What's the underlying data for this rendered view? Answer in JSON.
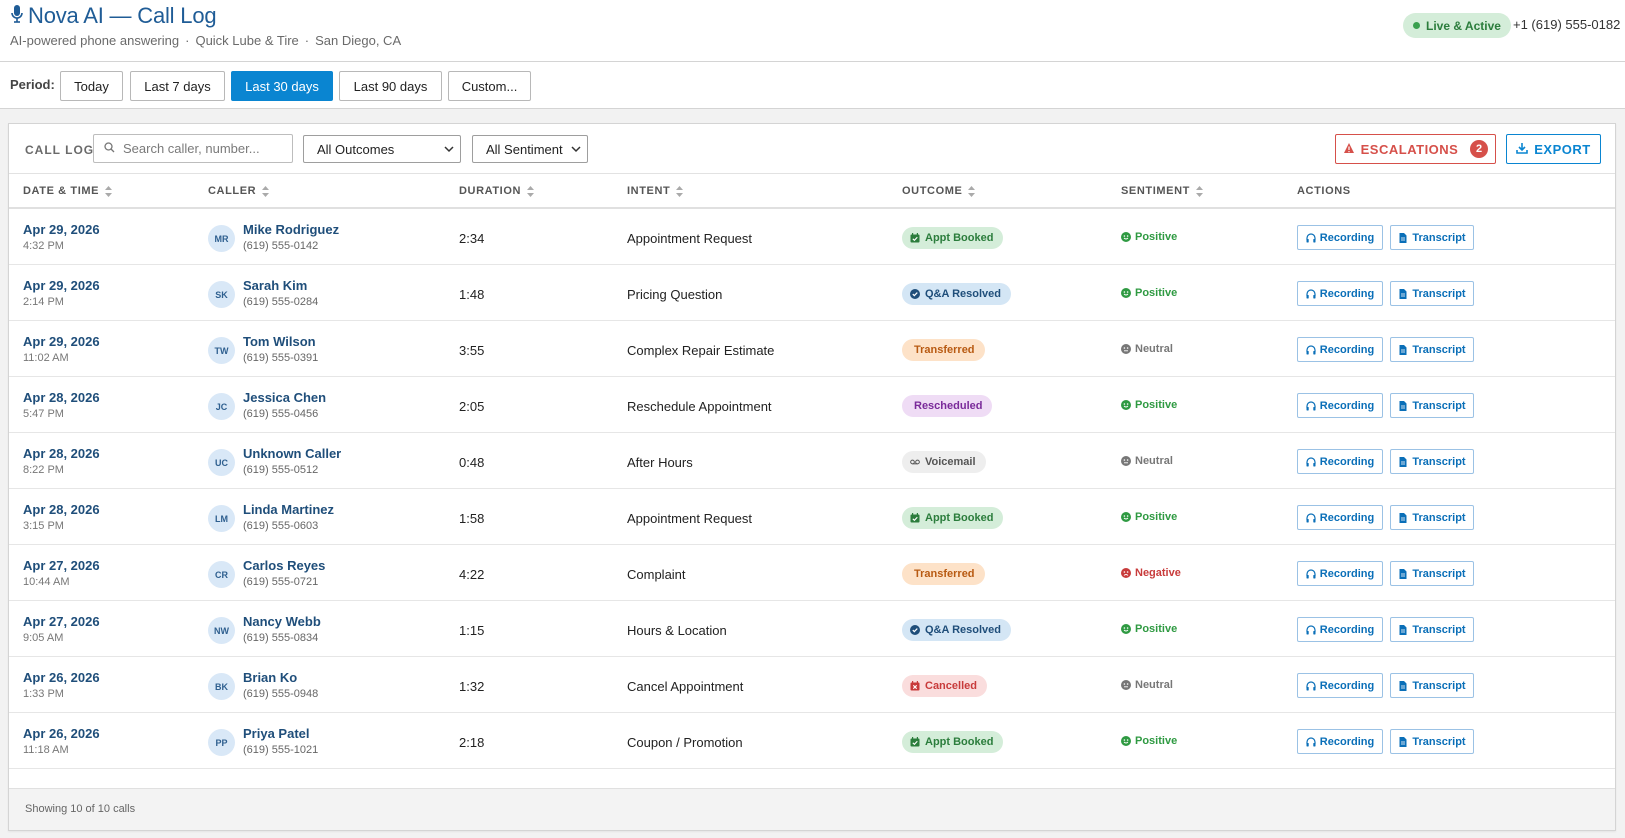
{
  "header": {
    "title": "Nova AI — Call Log",
    "subtitle_parts": [
      "AI-powered phone answering",
      "Quick Lube & Tire",
      "San Diego, CA"
    ],
    "separator": "·",
    "status": "Live & Active",
    "phone": "+1 (619) 555-0182"
  },
  "period": {
    "label": "Period:",
    "options": [
      "Today",
      "Last 7 days",
      "Last 30 days",
      "Last 90 days",
      "Custom..."
    ],
    "selected": "Last 30 days"
  },
  "toolbar": {
    "section_label": "CALL LOG",
    "search_placeholder": "Search caller, number...",
    "outcome_filter": "All Outcomes",
    "sentiment_filter": "All Sentiment",
    "escalations_label": "ESCALATIONS",
    "escalations_count": "2",
    "export_label": "EXPORT"
  },
  "table": {
    "columns": [
      "DATE & TIME",
      "CALLER",
      "DURATION",
      "INTENT",
      "OUTCOME",
      "SENTIMENT",
      "ACTIONS"
    ],
    "recording_label": "Recording",
    "transcript_label": "Transcript",
    "rows": [
      {
        "date": "Apr 29, 2026",
        "time": "4:32 PM",
        "initials": "MR",
        "name": "Mike Rodriguez",
        "phone": "(619) 555-0142",
        "duration": "2:34",
        "intent": "Appointment Request",
        "outcome": "Appt Booked",
        "outcome_type": "booked",
        "sentiment": "Positive",
        "sentiment_type": "positive"
      },
      {
        "date": "Apr 29, 2026",
        "time": "2:14 PM",
        "initials": "SK",
        "name": "Sarah Kim",
        "phone": "(619) 555-0284",
        "duration": "1:48",
        "intent": "Pricing Question",
        "outcome": "Q&A Resolved",
        "outcome_type": "qa",
        "sentiment": "Positive",
        "sentiment_type": "positive"
      },
      {
        "date": "Apr 29, 2026",
        "time": "11:02 AM",
        "initials": "TW",
        "name": "Tom Wilson",
        "phone": "(619) 555-0391",
        "duration": "3:55",
        "intent": "Complex Repair Estimate",
        "outcome": "Transferred",
        "outcome_type": "transferred",
        "sentiment": "Neutral",
        "sentiment_type": "neutral"
      },
      {
        "date": "Apr 28, 2026",
        "time": "5:47 PM",
        "initials": "JC",
        "name": "Jessica Chen",
        "phone": "(619) 555-0456",
        "duration": "2:05",
        "intent": "Reschedule Appointment",
        "outcome": "Rescheduled",
        "outcome_type": "rescheduled",
        "sentiment": "Positive",
        "sentiment_type": "positive"
      },
      {
        "date": "Apr 28, 2026",
        "time": "8:22 PM",
        "initials": "UC",
        "name": "Unknown Caller",
        "phone": "(619) 555-0512",
        "duration": "0:48",
        "intent": "After Hours",
        "outcome": "Voicemail",
        "outcome_type": "voicemail",
        "sentiment": "Neutral",
        "sentiment_type": "neutral"
      },
      {
        "date": "Apr 28, 2026",
        "time": "3:15 PM",
        "initials": "LM",
        "name": "Linda Martinez",
        "phone": "(619) 555-0603",
        "duration": "1:58",
        "intent": "Appointment Request",
        "outcome": "Appt Booked",
        "outcome_type": "booked",
        "sentiment": "Positive",
        "sentiment_type": "positive"
      },
      {
        "date": "Apr 27, 2026",
        "time": "10:44 AM",
        "initials": "CR",
        "name": "Carlos Reyes",
        "phone": "(619) 555-0721",
        "duration": "4:22",
        "intent": "Complaint",
        "outcome": "Transferred",
        "outcome_type": "transferred",
        "sentiment": "Negative",
        "sentiment_type": "negative"
      },
      {
        "date": "Apr 27, 2026",
        "time": "9:05 AM",
        "initials": "NW",
        "name": "Nancy Webb",
        "phone": "(619) 555-0834",
        "duration": "1:15",
        "intent": "Hours & Location",
        "outcome": "Q&A Resolved",
        "outcome_type": "qa",
        "sentiment": "Positive",
        "sentiment_type": "positive"
      },
      {
        "date": "Apr 26, 2026",
        "time": "1:33 PM",
        "initials": "BK",
        "name": "Brian Ko",
        "phone": "(619) 555-0948",
        "duration": "1:32",
        "intent": "Cancel Appointment",
        "outcome": "Cancelled",
        "outcome_type": "cancelled",
        "sentiment": "Neutral",
        "sentiment_type": "neutral"
      },
      {
        "date": "Apr 26, 2026",
        "time": "11:18 AM",
        "initials": "PP",
        "name": "Priya Patel",
        "phone": "(619) 555-1021",
        "duration": "2:18",
        "intent": "Coupon / Promotion",
        "outcome": "Appt Booked",
        "outcome_type": "booked",
        "sentiment": "Positive",
        "sentiment_type": "positive"
      }
    ]
  },
  "footer": {
    "summary": "Showing 10 of 10 calls"
  },
  "colors": {
    "accent": "#0a85d1",
    "title": "#1f5c96",
    "positive": "#2f9a42",
    "negative": "#c83b3b",
    "escalation": "#d6504a"
  }
}
